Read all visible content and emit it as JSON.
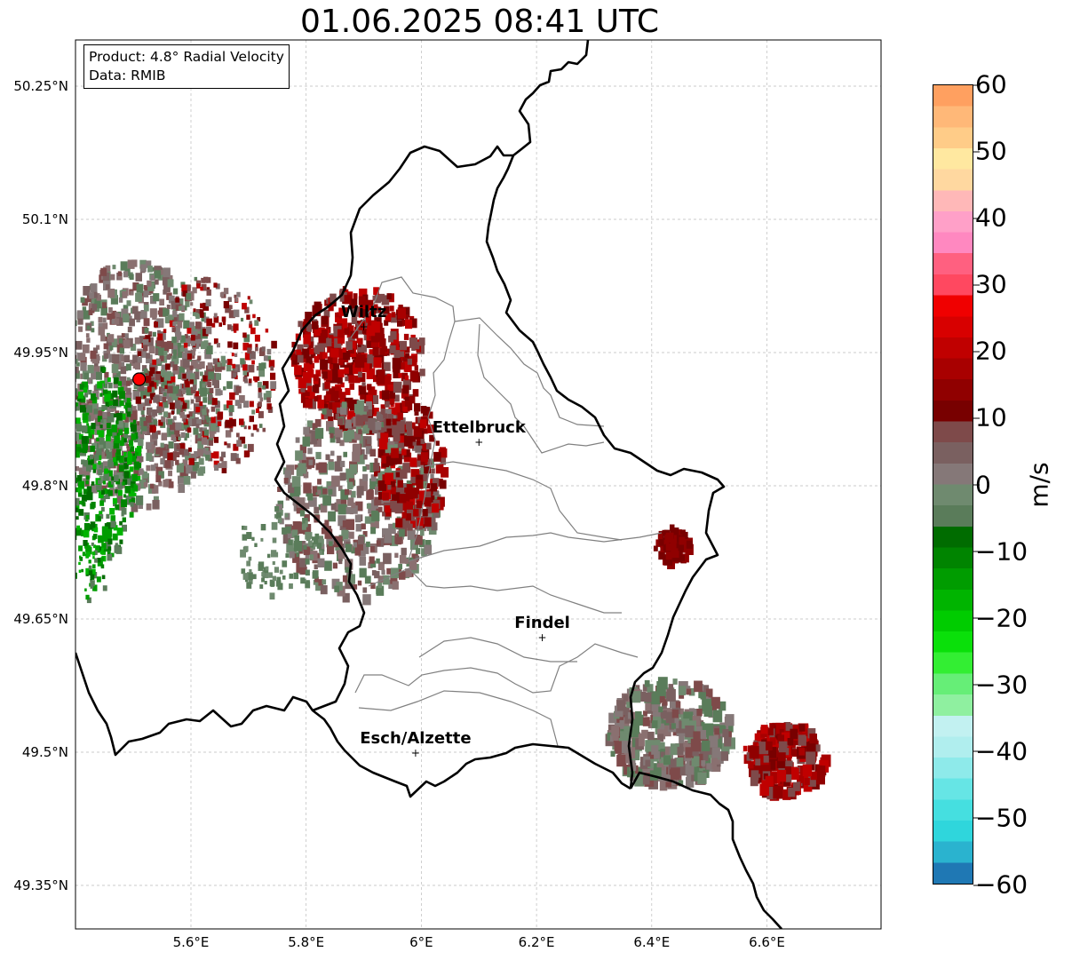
{
  "title": "01.06.2025 08:41 UTC",
  "info": {
    "product_line": "Product: 4.8° Radial Velocity",
    "data_line": "Data: RMIB"
  },
  "map": {
    "lon_ticks": [
      {
        "value": 5.6,
        "label": "5.6°E"
      },
      {
        "value": 5.8,
        "label": "5.8°E"
      },
      {
        "value": 6.0,
        "label": "6°E"
      },
      {
        "value": 6.2,
        "label": "6.2°E"
      },
      {
        "value": 6.4,
        "label": "6.4°E"
      },
      {
        "value": 6.6,
        "label": "6.6°E"
      }
    ],
    "lat_ticks": [
      {
        "value": 50.25,
        "label": "50.25°N"
      },
      {
        "value": 50.1,
        "label": "50.1°N"
      },
      {
        "value": 49.95,
        "label": "49.95°N"
      },
      {
        "value": 49.8,
        "label": "49.8°N"
      },
      {
        "value": 49.65,
        "label": "49.65°N"
      },
      {
        "value": 49.5,
        "label": "49.5°N"
      },
      {
        "value": 49.35,
        "label": "49.35°N"
      }
    ],
    "cities": [
      {
        "name": "Wiltz",
        "lon": 5.9,
        "lat": 49.98
      },
      {
        "name": "Ettelbruck",
        "lon": 6.1,
        "lat": 49.85
      },
      {
        "name": "Findel",
        "lon": 6.21,
        "lat": 49.63
      },
      {
        "name": "Esch/Alzette",
        "lon": 5.99,
        "lat": 49.5
      }
    ],
    "radar_site": {
      "lon": 5.51,
      "lat": 49.92
    },
    "border_color": "#000000",
    "district_color": "#808080",
    "grid": true
  },
  "colorbar": {
    "unit": "m/s",
    "min": -60,
    "max": 60,
    "ticks": [
      "60",
      "50",
      "40",
      "30",
      "20",
      "10",
      "0",
      "−10",
      "−20",
      "−30",
      "−40",
      "−50",
      "−60"
    ],
    "colors": [
      "#1f78b4",
      "#2ab3cf",
      "#2fd6dc",
      "#45dfe0",
      "#66e5e5",
      "#8eeaea",
      "#b0eeee",
      "#c2f1f1",
      "#8ff0a0",
      "#66ee77",
      "#33ee33",
      "#0ae00a",
      "#00cc00",
      "#00b400",
      "#009c00",
      "#008400",
      "#006c00",
      "#5a7c5a",
      "#6f8a6f",
      "#857878",
      "#7a6060",
      "#7e4a4a",
      "#780000",
      "#900000",
      "#a80000",
      "#c00000",
      "#d80000",
      "#f00000",
      "#ff4860",
      "#ff6080",
      "#ff88c0",
      "#ffa0c8",
      "#ffb8b8",
      "#ffd8a0",
      "#ffe8a0",
      "#ffcc88",
      "#ffb878",
      "#ffa060"
    ]
  }
}
